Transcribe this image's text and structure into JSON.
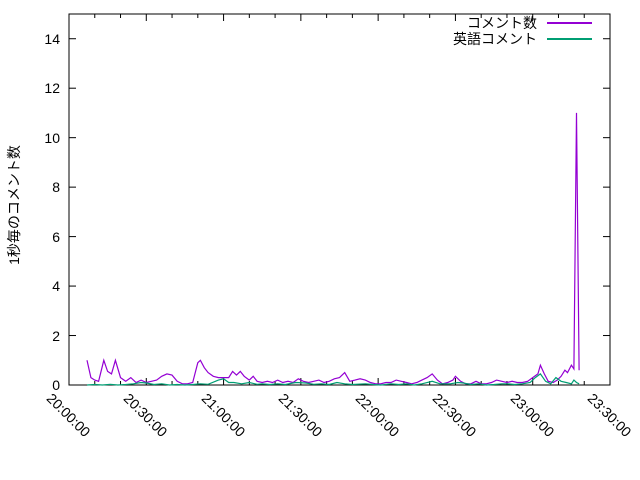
{
  "figure": {
    "background": "#ffffff",
    "border_color": "#000000",
    "tick_color": "#000000",
    "text_color": "#000000"
  },
  "chart_data": {
    "type": "line",
    "title": "",
    "xlabel": "",
    "ylabel": "1秒毎のコメント数",
    "grid": false,
    "legend_position": "top-right-inside",
    "ylim": [
      0,
      15
    ],
    "y_ticks": [
      0,
      2,
      4,
      6,
      8,
      10,
      12,
      14
    ],
    "xlim_minutes": [
      0,
      210
    ],
    "x_tick_minutes": [
      0,
      30,
      60,
      90,
      120,
      150,
      180,
      210
    ],
    "x_tick_labels": [
      "20:00:00",
      "20:30:00",
      "21:00:00",
      "21:30:00",
      "22:00:00",
      "22:30:00",
      "23:00:00",
      "23:30:00"
    ],
    "x_minor_tick_interval_minutes": 10,
    "series": [
      {
        "name": "コメント数",
        "color": "#9400d3",
        "points": [
          [
            7,
            1.0
          ],
          [
            8.5,
            0.3
          ],
          [
            10,
            0.2
          ],
          [
            11.5,
            0.15
          ],
          [
            13.5,
            1.0
          ],
          [
            15,
            0.55
          ],
          [
            16.5,
            0.45
          ],
          [
            18,
            1.0
          ],
          [
            20,
            0.3
          ],
          [
            22,
            0.15
          ],
          [
            24,
            0.3
          ],
          [
            26,
            0.1
          ],
          [
            28,
            0.2
          ],
          [
            30,
            0.1
          ],
          [
            32,
            0.15
          ],
          [
            34,
            0.2
          ],
          [
            36,
            0.35
          ],
          [
            38,
            0.45
          ],
          [
            40,
            0.4
          ],
          [
            42,
            0.15
          ],
          [
            44,
            0.05
          ],
          [
            46,
            0.05
          ],
          [
            48,
            0.1
          ],
          [
            50,
            0.9
          ],
          [
            51,
            1.0
          ],
          [
            52.5,
            0.7
          ],
          [
            54,
            0.5
          ],
          [
            56,
            0.35
          ],
          [
            58,
            0.3
          ],
          [
            60,
            0.3
          ],
          [
            62,
            0.3
          ],
          [
            63.5,
            0.55
          ],
          [
            65,
            0.4
          ],
          [
            66.5,
            0.55
          ],
          [
            68,
            0.35
          ],
          [
            70,
            0.2
          ],
          [
            71.5,
            0.35
          ],
          [
            73,
            0.15
          ],
          [
            75,
            0.1
          ],
          [
            77,
            0.15
          ],
          [
            79,
            0.1
          ],
          [
            81,
            0.2
          ],
          [
            83,
            0.1
          ],
          [
            85,
            0.15
          ],
          [
            87,
            0.1
          ],
          [
            89,
            0.25
          ],
          [
            91,
            0.15
          ],
          [
            93,
            0.1
          ],
          [
            95,
            0.15
          ],
          [
            97,
            0.2
          ],
          [
            99,
            0.1
          ],
          [
            101,
            0.15
          ],
          [
            103,
            0.25
          ],
          [
            105,
            0.3
          ],
          [
            107,
            0.5
          ],
          [
            109,
            0.15
          ],
          [
            111,
            0.2
          ],
          [
            113,
            0.25
          ],
          [
            115,
            0.2
          ],
          [
            117,
            0.1
          ],
          [
            119,
            0.05
          ],
          [
            121,
            0.05
          ],
          [
            123,
            0.1
          ],
          [
            125,
            0.1
          ],
          [
            127,
            0.2
          ],
          [
            129,
            0.15
          ],
          [
            131,
            0.1
          ],
          [
            133,
            0.05
          ],
          [
            135,
            0.1
          ],
          [
            137,
            0.2
          ],
          [
            139,
            0.3
          ],
          [
            141,
            0.45
          ],
          [
            143,
            0.2
          ],
          [
            145,
            0.05
          ],
          [
            147,
            0.1
          ],
          [
            149,
            0.2
          ],
          [
            150,
            0.35
          ],
          [
            152,
            0.15
          ],
          [
            154,
            0.05
          ],
          [
            156,
            0.05
          ],
          [
            158,
            0.15
          ],
          [
            160,
            0.05
          ],
          [
            162,
            0.05
          ],
          [
            164,
            0.1
          ],
          [
            166,
            0.2
          ],
          [
            168,
            0.15
          ],
          [
            170,
            0.1
          ],
          [
            172,
            0.15
          ],
          [
            174,
            0.1
          ],
          [
            176,
            0.1
          ],
          [
            178,
            0.15
          ],
          [
            180,
            0.3
          ],
          [
            182,
            0.45
          ],
          [
            183,
            0.8
          ],
          [
            184.5,
            0.45
          ],
          [
            186,
            0.15
          ],
          [
            188,
            0.1
          ],
          [
            189.5,
            0.2
          ],
          [
            191,
            0.35
          ],
          [
            192.5,
            0.6
          ],
          [
            193.5,
            0.5
          ],
          [
            195,
            0.8
          ],
          [
            196,
            0.65
          ],
          [
            197,
            11
          ],
          [
            198,
            0.6
          ]
        ]
      },
      {
        "name": "英語コメント",
        "color": "#009e73",
        "points": [
          [
            7,
            0
          ],
          [
            10,
            0.02
          ],
          [
            13,
            0
          ],
          [
            16,
            0.03
          ],
          [
            19,
            0
          ],
          [
            22,
            0.02
          ],
          [
            25,
            0.05
          ],
          [
            28,
            0.1
          ],
          [
            30,
            0.08
          ],
          [
            33,
            0.02
          ],
          [
            36,
            0.05
          ],
          [
            39,
            0
          ],
          [
            42,
            0.02
          ],
          [
            45,
            0
          ],
          [
            48,
            0.02
          ],
          [
            51,
            0.05
          ],
          [
            54,
            0.03
          ],
          [
            58,
            0.2
          ],
          [
            60,
            0.25
          ],
          [
            62,
            0.1
          ],
          [
            64,
            0.1
          ],
          [
            67,
            0.05
          ],
          [
            70,
            0.1
          ],
          [
            73,
            0.03
          ],
          [
            75,
            0.05
          ],
          [
            78,
            0.02
          ],
          [
            81,
            0.05
          ],
          [
            84,
            0.02
          ],
          [
            88,
            0.1
          ],
          [
            92,
            0.08
          ],
          [
            95,
            0.03
          ],
          [
            98,
            0.05
          ],
          [
            101,
            0.02
          ],
          [
            104,
            0.1
          ],
          [
            107,
            0.05
          ],
          [
            110,
            0.02
          ],
          [
            115,
            0.05
          ],
          [
            118,
            0.02
          ],
          [
            121,
            0
          ],
          [
            125,
            0.05
          ],
          [
            128,
            0.02
          ],
          [
            131,
            0.05
          ],
          [
            134,
            0
          ],
          [
            137,
            0.05
          ],
          [
            141,
            0.15
          ],
          [
            144,
            0.05
          ],
          [
            148,
            0.05
          ],
          [
            151,
            0.1
          ],
          [
            153,
            0.08
          ],
          [
            156,
            0.02
          ],
          [
            159,
            0.05
          ],
          [
            162,
            0
          ],
          [
            165,
            0.02
          ],
          [
            168,
            0.05
          ],
          [
            170,
            0.05
          ],
          [
            173,
            0.02
          ],
          [
            176,
            0.05
          ],
          [
            179,
            0.1
          ],
          [
            181,
            0.3
          ],
          [
            183,
            0.45
          ],
          [
            185,
            0.15
          ],
          [
            187,
            0.05
          ],
          [
            189,
            0.3
          ],
          [
            191,
            0.15
          ],
          [
            193,
            0.1
          ],
          [
            195,
            0.05
          ],
          [
            196,
            0.2
          ],
          [
            197,
            0.1
          ],
          [
            198,
            0.05
          ]
        ]
      }
    ]
  }
}
